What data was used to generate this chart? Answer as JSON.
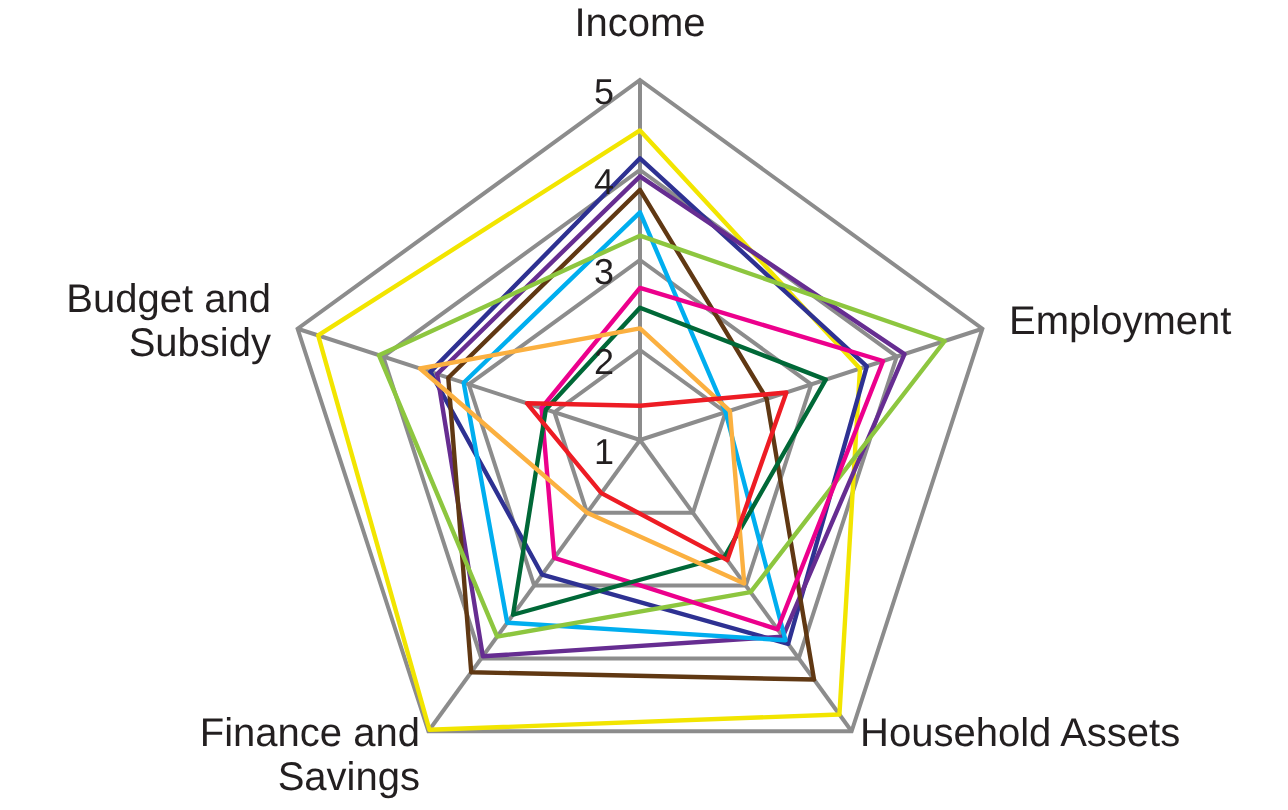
{
  "chart_data": {
    "type": "radar",
    "categories": [
      "Income",
      "Employment",
      "Household Assets",
      "Finance and Savings",
      "Budget and Subsidy"
    ],
    "ylim": [
      1,
      5
    ],
    "yticks": [
      1,
      2,
      3,
      4,
      5
    ],
    "grid": true,
    "marker": "none",
    "series": [
      {
        "color": "#f2e500",
        "values": [
          4.44,
          3.57,
          4.77,
          4.98,
          4.76
        ]
      },
      {
        "color": "#2e3192",
        "values": [
          4.13,
          3.65,
          3.8,
          2.85,
          3.45
        ]
      },
      {
        "color": "#662d91",
        "values": [
          3.93,
          4.09,
          3.7,
          3.97,
          3.37
        ]
      },
      {
        "color": "#603813",
        "values": [
          3.78,
          2.48,
          4.29,
          4.19,
          3.24
        ]
      },
      {
        "color": "#00aeef",
        "values": [
          3.53,
          2.0,
          3.75,
          3.51,
          3.06
        ]
      },
      {
        "color": "#8dc63f",
        "values": [
          3.27,
          4.56,
          3.09,
          3.7,
          4.05
        ]
      },
      {
        "color": "#ec008c",
        "values": [
          2.69,
          3.84,
          3.6,
          2.62,
          2.15
        ]
      },
      {
        "color": "#006837",
        "values": [
          2.47,
          3.17,
          2.6,
          3.4,
          2.1
        ]
      },
      {
        "color": "#fbb040",
        "values": [
          2.24,
          2.05,
          2.97,
          2.0,
          3.57
        ]
      },
      {
        "color": "#ed1c24",
        "values": [
          1.38,
          2.71,
          2.65,
          1.73,
          2.32
        ]
      }
    ]
  }
}
